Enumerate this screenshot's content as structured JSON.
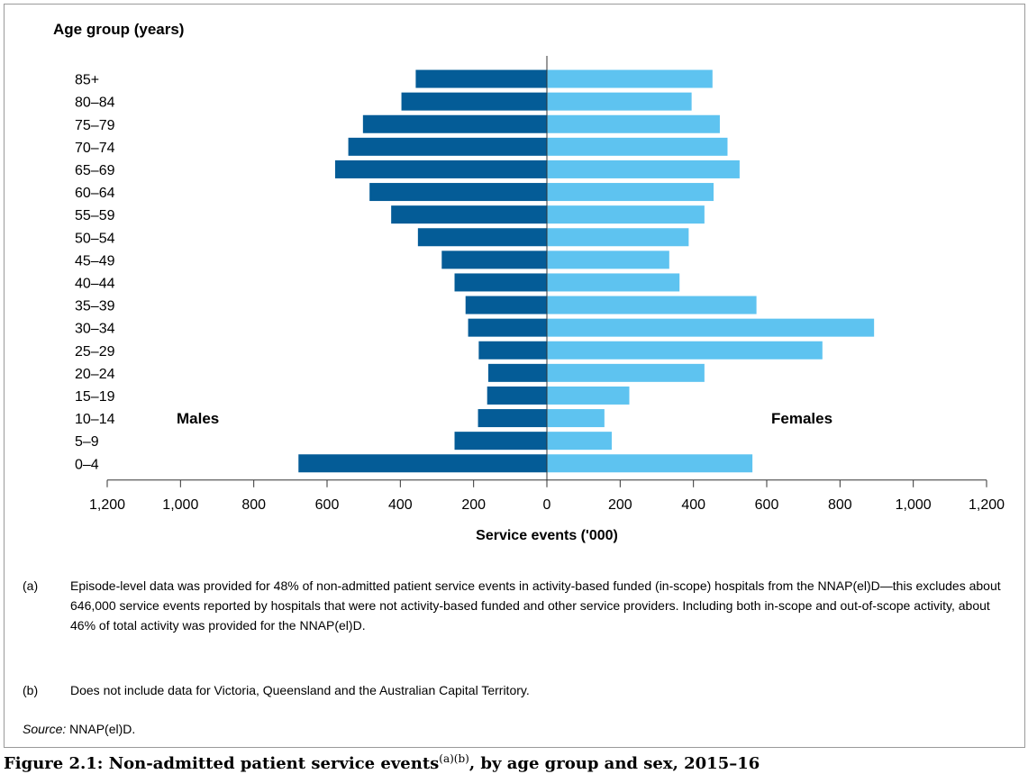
{
  "chart_data": {
    "type": "bar",
    "orientation": "horizontal-population-pyramid",
    "y_axis_title": "Age group (years)",
    "x_axis_title": "Service events ('000)",
    "xlim": [
      -1200,
      1200
    ],
    "x_ticks": [
      "1,200",
      "1,000",
      "800",
      "600",
      "400",
      "200",
      "0",
      "200",
      "400",
      "600",
      "800",
      "1,000",
      "1,200"
    ],
    "categories": [
      "85+",
      "80–84",
      "75–79",
      "70–74",
      "65–69",
      "60–64",
      "55–59",
      "50–54",
      "45–49",
      "40–44",
      "35–39",
      "30–34",
      "25–29",
      "20–24",
      "15–19",
      "10–14",
      "5–9",
      "0–4"
    ],
    "series": [
      {
        "name": "Males",
        "color": "#045c97",
        "values": [
          358,
          397,
          502,
          542,
          578,
          484,
          425,
          352,
          287,
          252,
          222,
          215,
          186,
          160,
          163,
          188,
          252,
          678
        ]
      },
      {
        "name": "Females",
        "color": "#5ec3f0",
        "values": [
          452,
          395,
          472,
          493,
          526,
          455,
          430,
          387,
          334,
          362,
          572,
          893,
          752,
          430,
          225,
          157,
          177,
          561
        ]
      }
    ],
    "grid": false
  },
  "notes": [
    {
      "tag": "(a)",
      "text": "Episode-level data was provided for 48% of non-admitted patient service events in activity-based funded (in-scope) hospitals from the NNAP(el)D—this excludes about 646,000 service events reported by hospitals that were not activity-based funded and other service providers. Including both in-scope and out-of-scope activity, about 46% of total activity was provided for the NNAP(el)D."
    },
    {
      "tag": "(b)",
      "text": "Does not include data for Victoria, Queensland and the Australian Capital Territory."
    }
  ],
  "source": {
    "label": "Source:",
    "text": " NNAP(el)D."
  },
  "caption": {
    "text": "Figure 2.1: Non-admitted patient service events",
    "sup": "(a)(b)",
    "rest": ", by age group and sex, 2015–16"
  }
}
